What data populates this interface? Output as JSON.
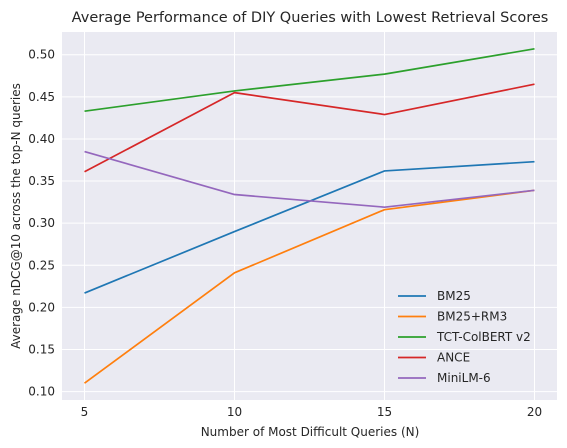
{
  "chart_data": {
    "type": "line",
    "title": "Average Performance of DIY Queries with Lowest Retrieval Scores",
    "xlabel": "Number of Most Difficult Queries (N)",
    "ylabel": "Average nDCG@10 across the top-N queries",
    "x": [
      5,
      10,
      15,
      20
    ],
    "xlim": [
      4.25,
      20.75
    ],
    "ylim": [
      0.09,
      0.527
    ],
    "xticks": [
      "5",
      "10",
      "15",
      "20"
    ],
    "yticks": [
      "0.10",
      "0.15",
      "0.20",
      "0.25",
      "0.30",
      "0.35",
      "0.40",
      "0.45",
      "0.50"
    ],
    "grid": true,
    "legend_position": "lower-right",
    "series": [
      {
        "name": "BM25",
        "color": "#1f77b4",
        "values": [
          0.217,
          0.29,
          0.362,
          0.373
        ]
      },
      {
        "name": "BM25+RM3",
        "color": "#ff7f0e",
        "values": [
          0.11,
          0.241,
          0.316,
          0.339
        ]
      },
      {
        "name": "TCT-ColBERT v2",
        "color": "#2ca02c",
        "values": [
          0.433,
          0.457,
          0.477,
          0.507
        ]
      },
      {
        "name": "ANCE",
        "color": "#d62728",
        "values": [
          0.361,
          0.455,
          0.429,
          0.465
        ]
      },
      {
        "name": "MiniLM-6",
        "color": "#9467bd",
        "values": [
          0.385,
          0.334,
          0.319,
          0.339
        ]
      }
    ]
  }
}
